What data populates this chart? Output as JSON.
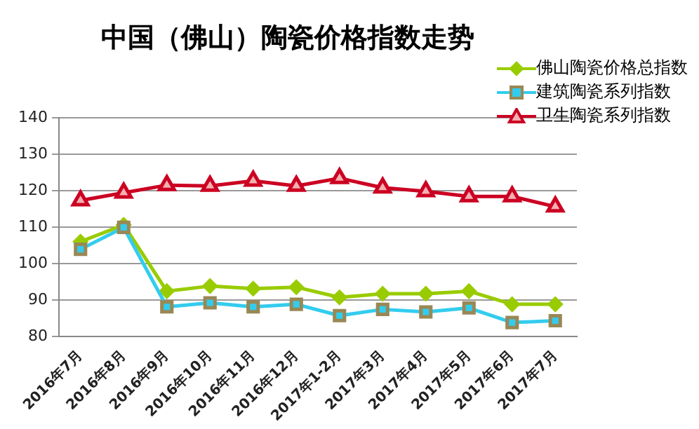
{
  "chart_data": {
    "type": "line",
    "title": "中国（佛山）陶瓷价格指数走势",
    "categories": [
      "2016年7月",
      "2016年8月",
      "2016年9月",
      "2016年10月",
      "2016年11月",
      "2016年12月",
      "2017年1-2月",
      "2017年3月",
      "2017年4月",
      "2017年5月",
      "2017年6月",
      "2017年7月"
    ],
    "series": [
      {
        "name": "佛山陶瓷价格总指数",
        "color": "#99cc00",
        "marker": "diamond",
        "values": [
          106,
          110.6,
          92.4,
          93.8,
          93.1,
          93.5,
          90.7,
          91.7,
          91.7,
          92.4,
          88.8,
          88.8
        ]
      },
      {
        "name": "建筑陶瓷系列指数",
        "color": "#33ccee",
        "marker": "square",
        "values": [
          103.9,
          109.9,
          88.1,
          89.2,
          88.1,
          88.8,
          85.7,
          87.4,
          86.7,
          87.8,
          83.8,
          84.3
        ]
      },
      {
        "name": "卫生陶瓷系列指数",
        "color": "#cc0022",
        "marker": "triangle",
        "values": [
          117.3,
          119.4,
          121.5,
          121.3,
          122.7,
          121.3,
          123.4,
          120.8,
          119.8,
          118.4,
          118.4,
          115.6
        ]
      }
    ],
    "ylim": [
      80,
      140
    ],
    "yticks": [
      80,
      90,
      100,
      110,
      120,
      130,
      140
    ],
    "grid": "y",
    "legend": "top right"
  }
}
